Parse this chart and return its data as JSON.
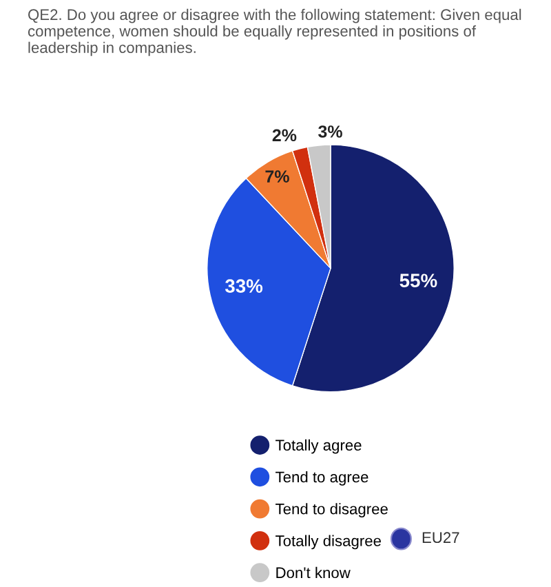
{
  "chart_data": {
    "type": "pie",
    "title": "QE2. Do you agree or disagree with the following statement: Given equal competence, women should be equally represented in positions of leadership in companies.",
    "categories": [
      "Totally agree",
      "Tend to agree",
      "Tend to disagree",
      "Totally disagree",
      "Don't know"
    ],
    "values": [
      55,
      33,
      7,
      2,
      3
    ],
    "value_labels": [
      "55%",
      "33%",
      "7%",
      "2%",
      "3%"
    ],
    "colors": [
      "#14206e",
      "#1f4fe0",
      "#f07a32",
      "#d1300f",
      "#c8c8c8"
    ],
    "legend": "bottom",
    "annotations": [
      "EU27"
    ]
  }
}
